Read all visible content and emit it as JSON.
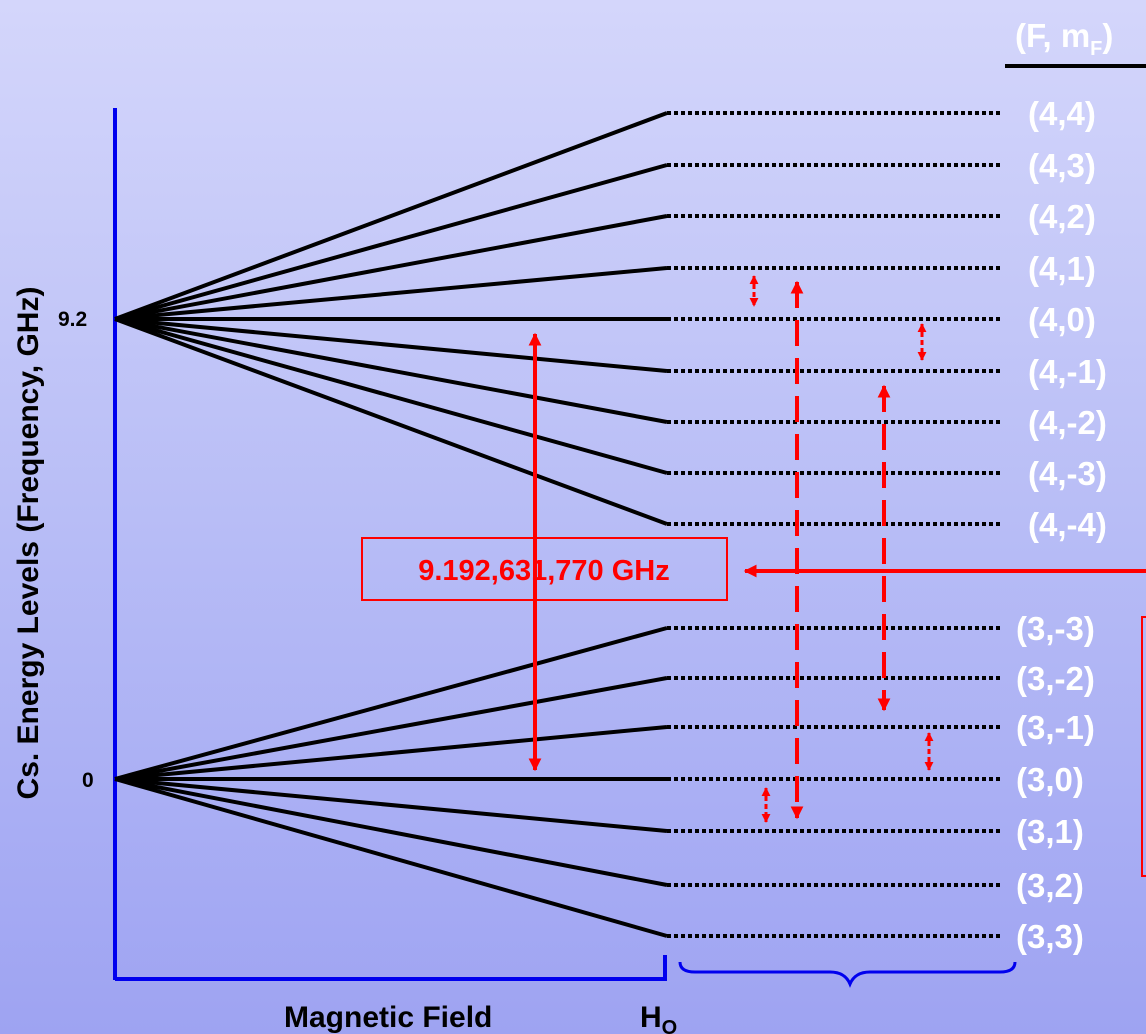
{
  "header": {
    "quantum_numbers": "(F, m",
    "quantum_sub": "F",
    "quantum_close": ")"
  },
  "axis": {
    "y_label": "Cs. Energy Levels (Frequency, GHz)",
    "tick_upper": "9.2",
    "tick_lower": "0",
    "x_label": "Magnetic Field",
    "field_label": "H",
    "field_sub": "O"
  },
  "transition": {
    "frequency_label": "9.192,631,770 GHz"
  },
  "levels_upper": [
    "(4,4)",
    "(4,3)",
    "(4,2)",
    "(4,1)",
    "(4,0)",
    "(4,-1)",
    "(4,-2)",
    "(4,-3)",
    "(4,-4)"
  ],
  "levels_lower": [
    "(3,-3)",
    "(3,-2)",
    "(3,-1)",
    "(3,0)",
    "(3,1)",
    "(3,2)",
    "(3,3)"
  ],
  "colors": {
    "axis_blue": "#0000ee",
    "arrow_red": "#ff0000",
    "line_black": "#000000",
    "label_white": "#ffffff"
  }
}
